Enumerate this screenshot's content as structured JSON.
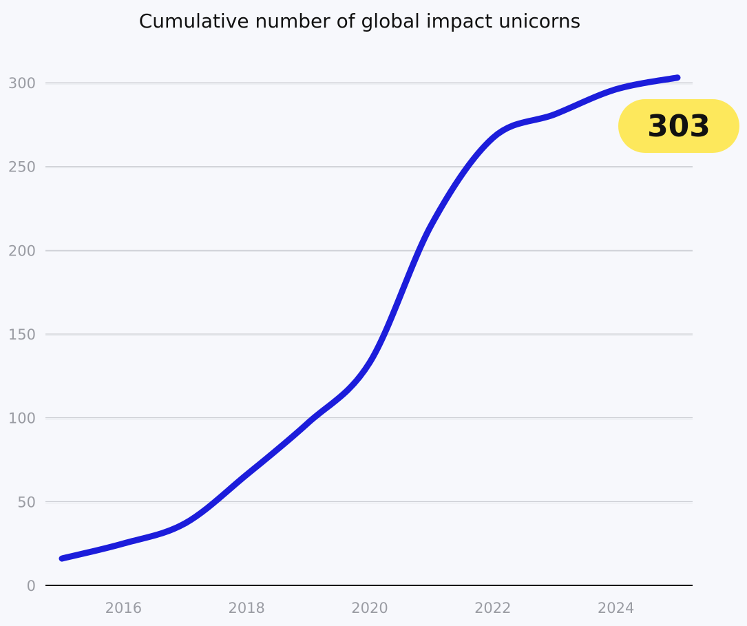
{
  "chart_data": {
    "type": "line",
    "title": "Cumulative number of global impact unicorns",
    "xlabel": "",
    "ylabel": "",
    "xlim": [
      2015,
      2025
    ],
    "ylim": [
      0,
      300
    ],
    "x_ticks": [
      "2016",
      "2018",
      "2020",
      "2022",
      "2024"
    ],
    "y_ticks": [
      "0",
      "50",
      "100",
      "150",
      "200",
      "250",
      "300"
    ],
    "grid": true,
    "series": [
      {
        "x": [
          2015,
          2016,
          2017,
          2018,
          2019,
          2020,
          2021,
          2022,
          2023,
          2024,
          2025
        ],
        "values": [
          16,
          25,
          37,
          66,
          97,
          133,
          215,
          267,
          281,
          296,
          303
        ],
        "color": "#1c1ddb"
      }
    ],
    "annotation": {
      "label": "303",
      "color": "#fde85c"
    }
  }
}
